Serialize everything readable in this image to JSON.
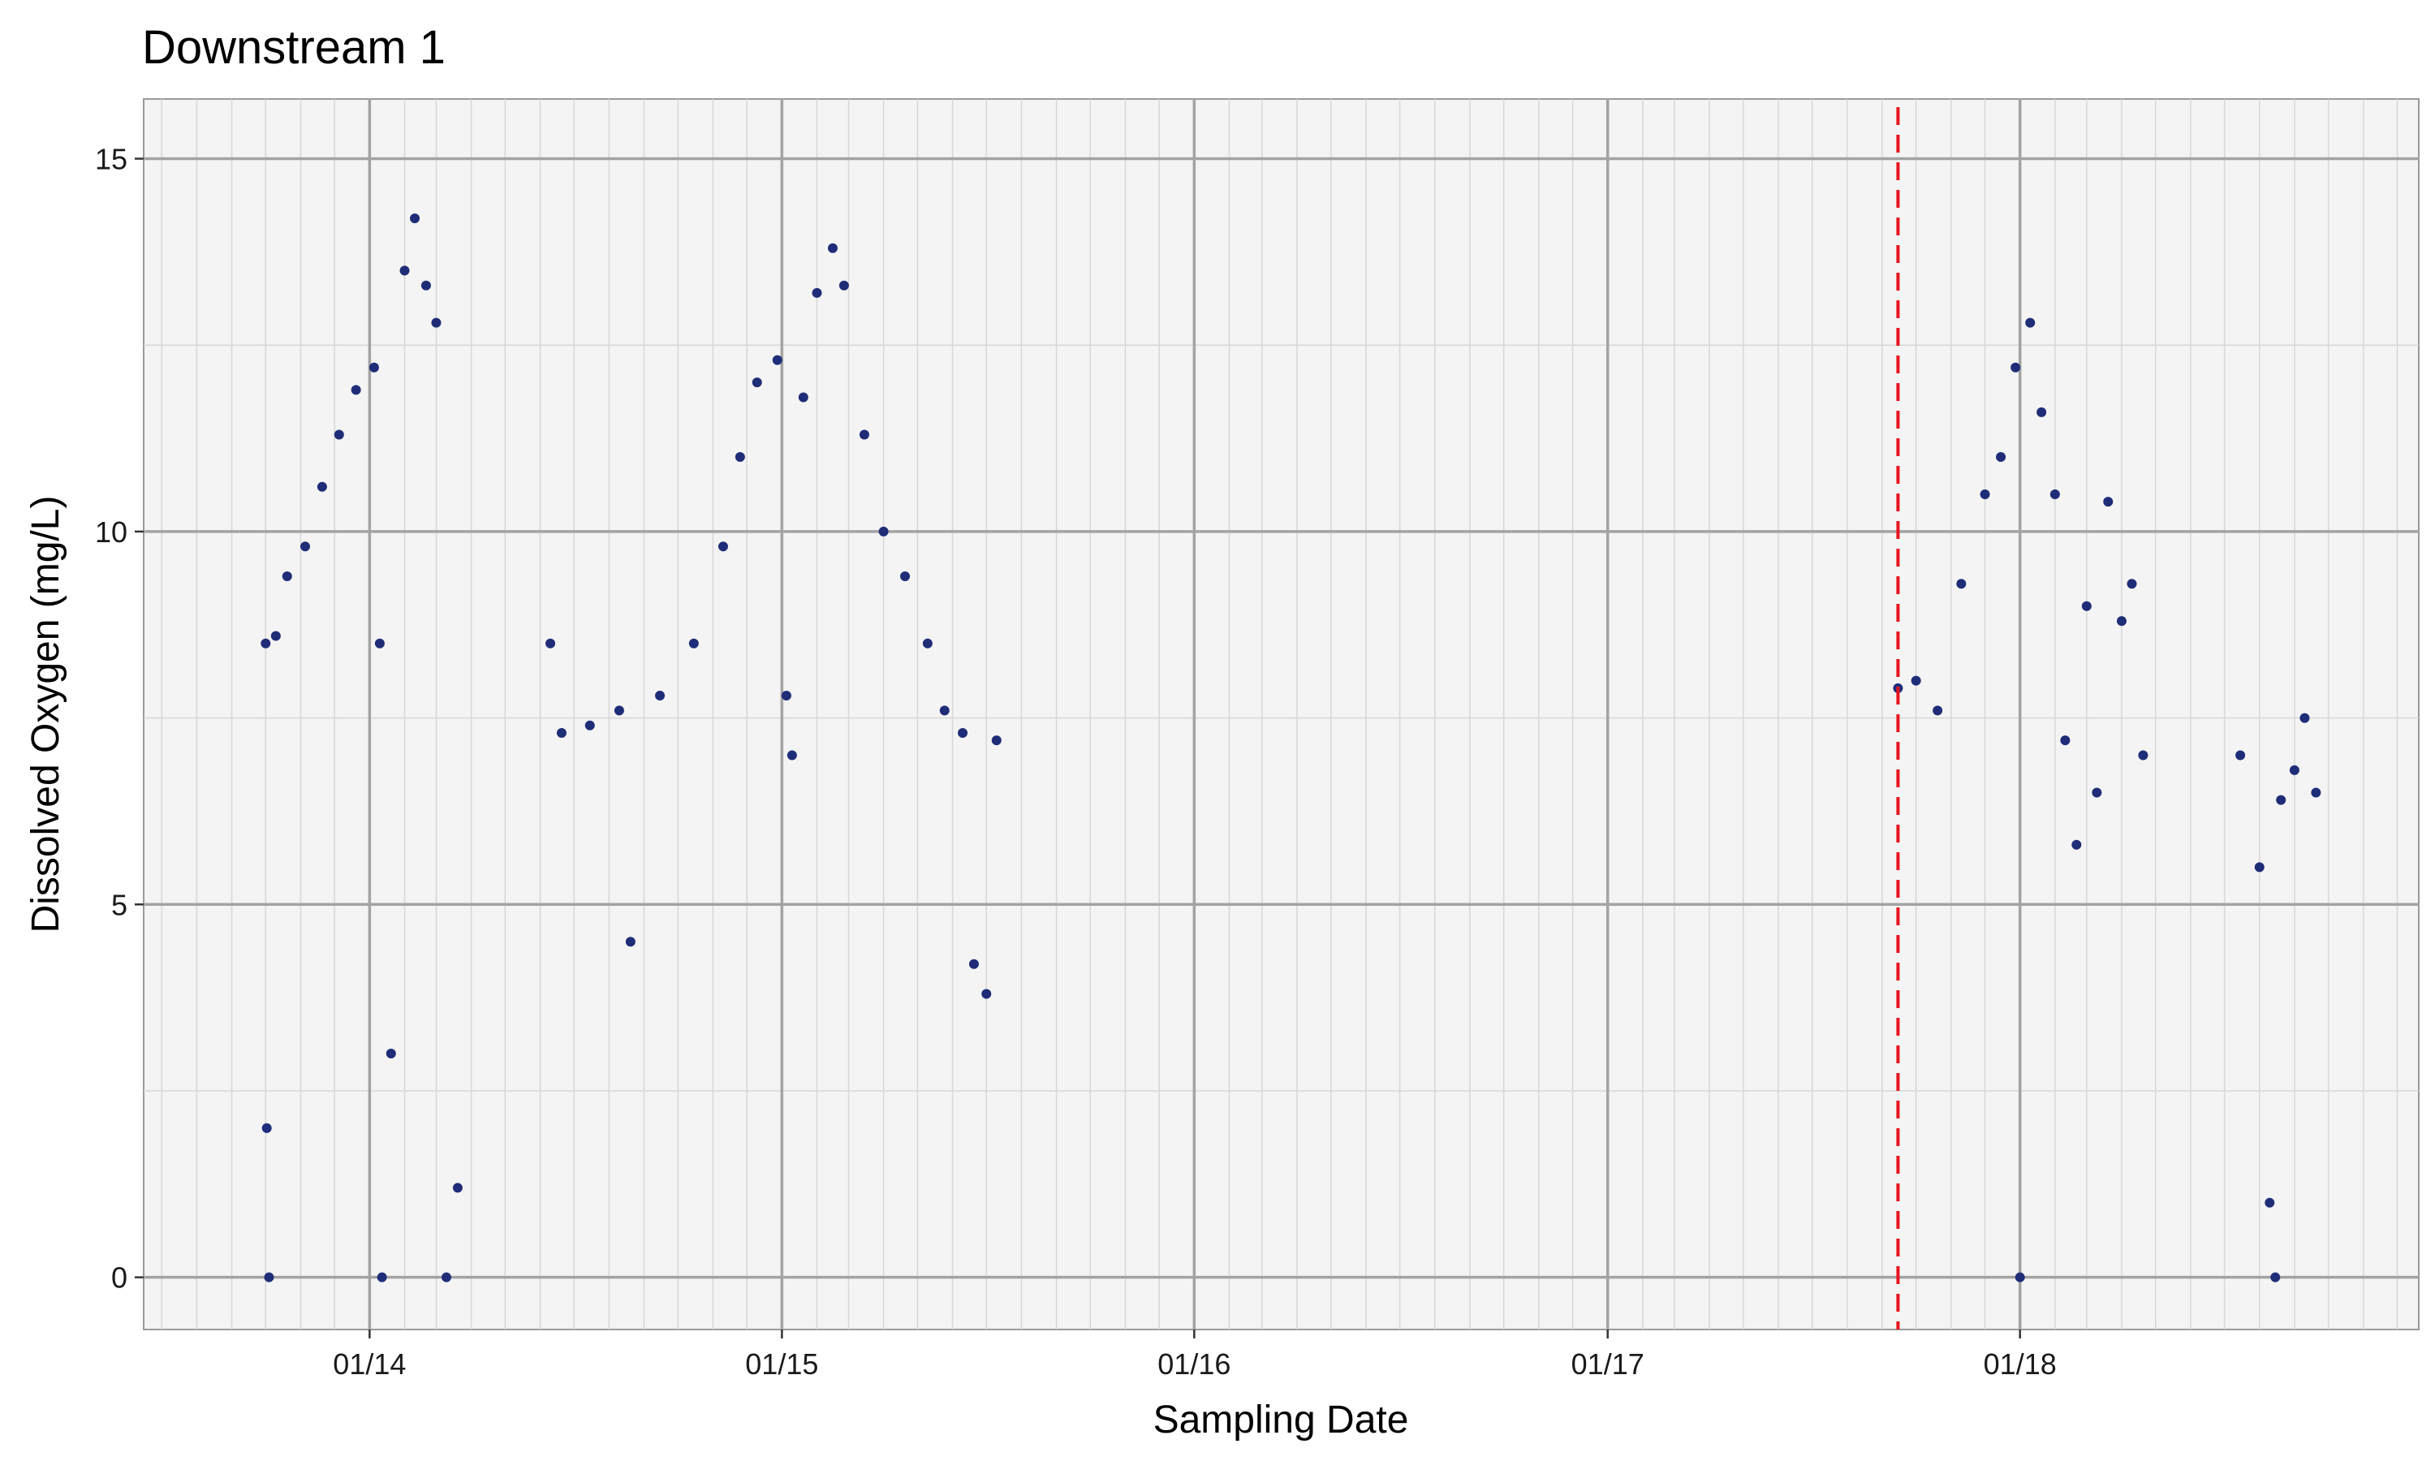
{
  "chart_data": {
    "type": "scatter",
    "title": "Downstream 1",
    "xlabel": "Sampling Date",
    "ylabel": "Dissolved Oxygen (mg/L)",
    "x_tick_labels": [
      "01/14",
      "01/15",
      "01/16",
      "01/17",
      "01/18"
    ],
    "x_tick_values": [
      "2014-01-01",
      "2015-01-01",
      "2016-01-01",
      "2017-01-01",
      "2018-01-01"
    ],
    "y_ticks": [
      0,
      5,
      10,
      15
    ],
    "xlim": [
      "2013-06-15",
      "2018-12-20"
    ],
    "ylim": [
      -0.7,
      15.8
    ],
    "grid": true,
    "minor_x_grid": "monthly",
    "vline": {
      "x": "2017-09-15",
      "color": "#e8141c",
      "style": "dashed"
    },
    "series_color": "#1f2d78",
    "series": [
      {
        "values": [
          [
            "2013-10-01",
            8.5
          ],
          [
            "2013-10-02",
            2.0
          ],
          [
            "2013-10-04",
            0.0
          ],
          [
            "2013-10-10",
            8.6
          ],
          [
            "2013-10-20",
            9.4
          ],
          [
            "2013-11-05",
            9.8
          ],
          [
            "2013-11-20",
            10.6
          ],
          [
            "2013-12-05",
            11.3
          ],
          [
            "2013-12-20",
            11.9
          ],
          [
            "2014-01-05",
            12.2
          ],
          [
            "2014-01-10",
            8.5
          ],
          [
            "2014-01-12",
            0.0
          ],
          [
            "2014-01-20",
            3.0
          ],
          [
            "2014-02-01",
            13.5
          ],
          [
            "2014-02-10",
            14.2
          ],
          [
            "2014-02-20",
            13.3
          ],
          [
            "2014-03-01",
            12.8
          ],
          [
            "2014-03-10",
            0.0
          ],
          [
            "2014-03-20",
            1.2
          ],
          [
            "2014-06-10",
            8.5
          ],
          [
            "2014-06-20",
            7.3
          ],
          [
            "2014-07-15",
            7.4
          ],
          [
            "2014-08-10",
            7.6
          ],
          [
            "2014-08-20",
            4.5
          ],
          [
            "2014-09-15",
            7.8
          ],
          [
            "2014-10-15",
            8.5
          ],
          [
            "2014-11-10",
            9.8
          ],
          [
            "2014-11-25",
            11.0
          ],
          [
            "2014-12-10",
            12.0
          ],
          [
            "2014-12-28",
            12.3
          ],
          [
            "2015-01-05",
            7.8
          ],
          [
            "2015-01-10",
            7.0
          ],
          [
            "2015-01-20",
            11.8
          ],
          [
            "2015-02-01",
            13.2
          ],
          [
            "2015-02-15",
            13.8
          ],
          [
            "2015-02-25",
            13.3
          ],
          [
            "2015-03-15",
            11.3
          ],
          [
            "2015-04-01",
            10.0
          ],
          [
            "2015-04-20",
            9.4
          ],
          [
            "2015-05-10",
            8.5
          ],
          [
            "2015-05-25",
            7.6
          ],
          [
            "2015-06-10",
            7.3
          ],
          [
            "2015-06-20",
            4.2
          ],
          [
            "2015-07-01",
            3.8
          ],
          [
            "2015-07-10",
            7.2
          ],
          [
            "2017-09-15",
            7.9
          ],
          [
            "2017-10-01",
            8.0
          ],
          [
            "2017-10-20",
            7.6
          ],
          [
            "2017-11-10",
            9.3
          ],
          [
            "2017-12-01",
            10.5
          ],
          [
            "2017-12-15",
            11.0
          ],
          [
            "2017-12-28",
            12.2
          ],
          [
            "2018-01-01",
            0.0
          ],
          [
            "2018-01-10",
            12.8
          ],
          [
            "2018-01-20",
            11.6
          ],
          [
            "2018-02-01",
            10.5
          ],
          [
            "2018-02-10",
            7.2
          ],
          [
            "2018-02-20",
            5.8
          ],
          [
            "2018-03-01",
            9.0
          ],
          [
            "2018-03-10",
            6.5
          ],
          [
            "2018-03-20",
            10.4
          ],
          [
            "2018-04-01",
            8.8
          ],
          [
            "2018-04-10",
            9.3
          ],
          [
            "2018-04-20",
            7.0
          ],
          [
            "2018-07-15",
            7.0
          ],
          [
            "2018-08-01",
            5.5
          ],
          [
            "2018-08-10",
            1.0
          ],
          [
            "2018-08-15",
            0.0
          ],
          [
            "2018-08-20",
            6.4
          ],
          [
            "2018-09-01",
            6.8
          ],
          [
            "2018-09-10",
            7.5
          ],
          [
            "2018-09-20",
            6.5
          ]
        ]
      }
    ]
  }
}
